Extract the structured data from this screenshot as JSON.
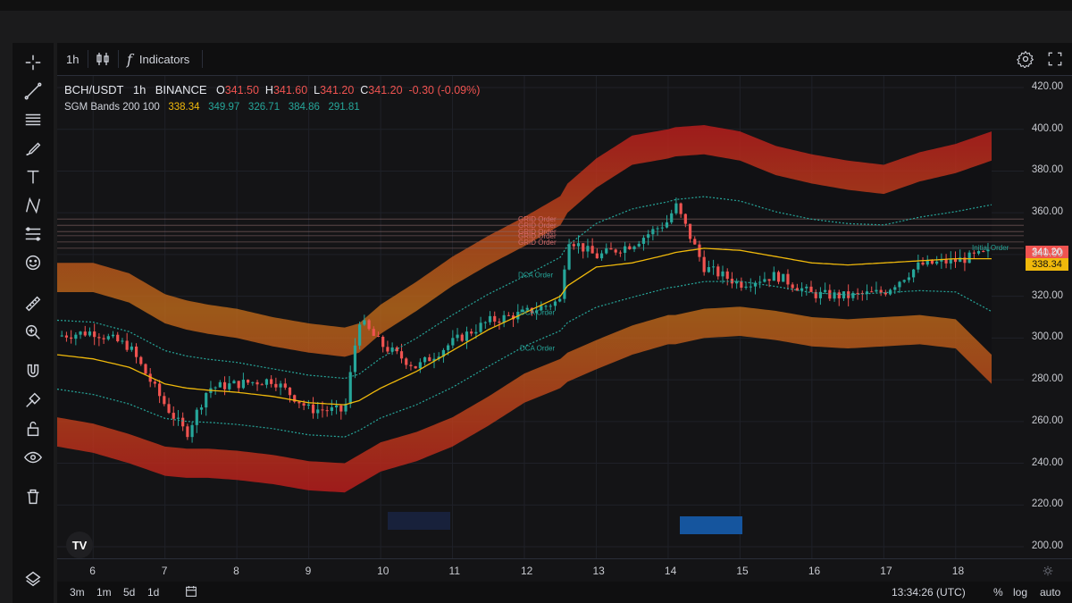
{
  "symbol": "BCH/USDT",
  "interval": "1h",
  "exchange": "BINANCE",
  "ohlc": {
    "o_label": "O",
    "o": "341.50",
    "h_label": "H",
    "h": "341.60",
    "l_label": "L",
    "l": "341.20",
    "c_label": "C",
    "c": "341.20",
    "change": "-0.30 (-0.09%)"
  },
  "indicator": {
    "name": "SGM Bands 200 100",
    "v1": "338.34",
    "v2": "349.97",
    "v3": "326.71",
    "v4": "384.86",
    "v5": "291.81"
  },
  "toolbar": {
    "interval": "1h",
    "indicators": "Indicators"
  },
  "price_tags": {
    "last": "341.20",
    "mid": "338.34"
  },
  "order_labels": {
    "grid": [
      "GRID Order",
      "GRID Order",
      "GRID Order",
      "GRID Order",
      "GRID Order"
    ],
    "dca": [
      "DCA Order",
      "DCA Order",
      "DCA Order"
    ],
    "initial": "Initial Order"
  },
  "bottom_bar": {
    "ranges": [
      "3m",
      "1m",
      "5d",
      "1d"
    ],
    "time": "13:34:26 (UTC)",
    "percent": "%",
    "log": "log",
    "auto": "auto"
  },
  "colors": {
    "up": "#26a69a",
    "down": "#ef5350",
    "mid": "#f0b90b",
    "band_inner": "#26a69a"
  },
  "chart_data": {
    "type": "line",
    "title": "BCH/USDT 1h BINANCE",
    "ylim": [
      200,
      420
    ],
    "y_ticks": [
      "420.00",
      "400.00",
      "380.00",
      "360.00",
      "340.00",
      "320.00",
      "300.00",
      "280.00",
      "260.00",
      "240.00",
      "220.00",
      "200.00"
    ],
    "x_ticks": [
      "6",
      "7",
      "8",
      "9",
      "10",
      "11",
      "12",
      "13",
      "14",
      "15",
      "16",
      "17",
      "18"
    ],
    "x": [
      5.5,
      6,
      6.5,
      7,
      7.3,
      7.6,
      8,
      8.5,
      9,
      9.5,
      9.7,
      10,
      10.5,
      11,
      11.5,
      12,
      12.5,
      12.6,
      13,
      13.5,
      14,
      14.1,
      14.5,
      15,
      15.5,
      16,
      16.5,
      17,
      17.5,
      18,
      18.5
    ],
    "series": [
      {
        "name": "price",
        "values": [
          301,
          303,
          296,
          268,
          254,
          276,
          278,
          280,
          266,
          265,
          309,
          297,
          286,
          298,
          308,
          312,
          318,
          348,
          339,
          345,
          356,
          364,
          334,
          326,
          330,
          321,
          320,
          322,
          335,
          337,
          341
        ]
      },
      {
        "name": "mid",
        "values": [
          292,
          290,
          286,
          278,
          276,
          275,
          274,
          272,
          269,
          268,
          270,
          276,
          284,
          294,
          304,
          312,
          320,
          325,
          334,
          336,
          340,
          341,
          343,
          342,
          339,
          336,
          335,
          336,
          337,
          338,
          338
        ]
      },
      {
        "name": "upper",
        "values": [
          322,
          322,
          317,
          307,
          304,
          302,
          300,
          296,
          293,
          291,
          293,
          302,
          313,
          325,
          335,
          344,
          354,
          360,
          372,
          383,
          386,
          387,
          388,
          385,
          378,
          374,
          371,
          369,
          375,
          379,
          385
        ]
      },
      {
        "name": "lower",
        "values": [
          262,
          259,
          254,
          248,
          247,
          247,
          246,
          244,
          241,
          240,
          244,
          250,
          255,
          262,
          272,
          283,
          290,
          293,
          299,
          306,
          311,
          311,
          314,
          315,
          313,
          310,
          309,
          310,
          311,
          309,
          292
        ]
      }
    ],
    "hlines": [
      357,
      354,
      351,
      349,
      346,
      343
    ]
  }
}
